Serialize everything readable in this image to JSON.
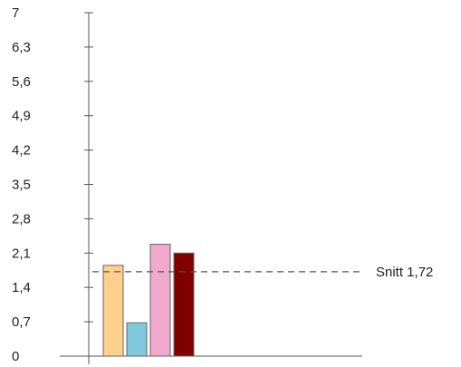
{
  "chart_data": {
    "type": "bar",
    "title": "",
    "xlabel": "",
    "ylabel": "",
    "categories": [
      "",
      "",
      "",
      ""
    ],
    "values": [
      1.85,
      0.68,
      2.28,
      2.1
    ],
    "colors": [
      "#fdd08b",
      "#80c8dc",
      "#f0a8cc",
      "#800000"
    ],
    "ylim": [
      0,
      7
    ],
    "yticks": [
      "0",
      "0,7",
      "1,4",
      "2,1",
      "2,8",
      "3,5",
      "4,2",
      "4,9",
      "5,6",
      "6,3",
      "7"
    ],
    "average": {
      "value": 1.72,
      "label": "Snitt 1,72"
    },
    "grid": false,
    "legend": "none"
  }
}
